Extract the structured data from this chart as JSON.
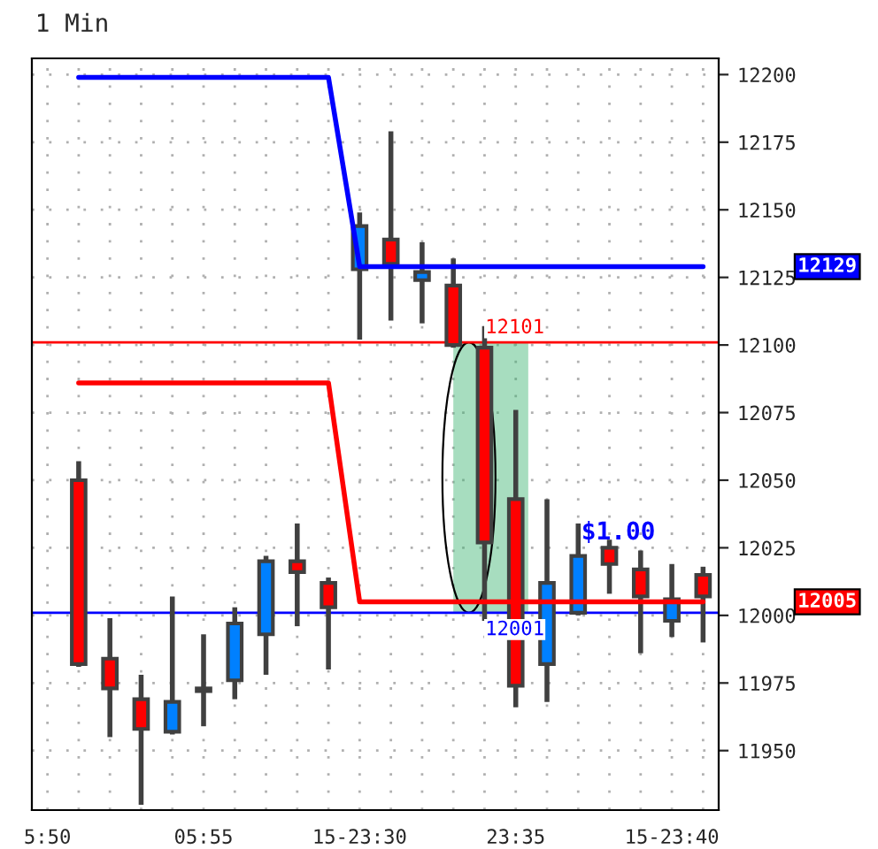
{
  "chart_data": {
    "type": "candlestick",
    "title": "1 Min",
    "categories": [
      "5:50",
      null,
      null,
      null,
      null,
      "05:55",
      null,
      null,
      null,
      null,
      "15-23:30",
      null,
      null,
      null,
      null,
      "23:35",
      null,
      null,
      null,
      null,
      "15-23:40",
      null
    ],
    "ohlc": [
      null,
      [
        12050,
        12057,
        11981,
        11982
      ],
      [
        11984,
        11999,
        11955,
        11973
      ],
      [
        11969,
        11978,
        11930,
        11958
      ],
      [
        11957,
        12007,
        11956,
        11968
      ],
      [
        11972,
        11993,
        11959,
        11973
      ],
      [
        11976,
        12003,
        11969,
        11997
      ],
      [
        11993,
        12022,
        11978,
        12020
      ],
      [
        12020,
        12034,
        11996,
        12016
      ],
      [
        12012,
        12014,
        11980,
        12003
      ],
      [
        12128,
        12149,
        12102,
        12144
      ],
      [
        12139,
        12179,
        12109,
        12130
      ],
      [
        12124,
        12138,
        12108,
        12127
      ],
      [
        12122,
        12132,
        12099,
        12100
      ],
      [
        12099,
        12107,
        11998,
        12027
      ],
      [
        12043,
        12076,
        11966,
        11974
      ],
      [
        11982,
        12043,
        11968,
        12012
      ],
      [
        12001,
        12034,
        12000,
        12022
      ],
      [
        12025,
        12028,
        12008,
        12019
      ],
      [
        12017,
        12024,
        11986,
        12007
      ],
      [
        11998,
        12019,
        11992,
        12006
      ],
      [
        12015,
        12018,
        11990,
        12007
      ]
    ],
    "colors": [
      null,
      "#ff0000",
      "#ff0000",
      "#ff0000",
      "#0080ff",
      "#0080ff",
      "#0080ff",
      "#0080ff",
      "#ff0000",
      "#ff0000",
      "#0080ff",
      "#ff0000",
      "#0080ff",
      "#ff0000",
      "#ff0000",
      "#ff0000",
      "#0080ff",
      "#0080ff",
      "#ff0000",
      "#ff0000",
      "#0080ff",
      "#ff0000"
    ],
    "series": [
      {
        "type": "line",
        "color": "#0000ff",
        "values": [
          null,
          12199,
          12199,
          12199,
          12199,
          12199,
          12199,
          12199,
          12199,
          12199,
          12129,
          12129,
          12129,
          12129,
          12129,
          12129,
          12129,
          12129,
          12129,
          12129,
          12129,
          12129
        ]
      },
      {
        "type": "line",
        "color": "#ff0000",
        "values": [
          null,
          12086,
          12086,
          12086,
          12086,
          12086,
          12086,
          12086,
          12086,
          12086,
          12005,
          12005,
          12005,
          12005,
          12005,
          12005,
          12005,
          12005,
          12005,
          12005,
          12005,
          12005
        ]
      }
    ],
    "ref_lines": [
      {
        "axis": "y",
        "value": 12101,
        "label": "12101",
        "color": "#ff0000"
      },
      {
        "axis": "y",
        "value": 12001,
        "label": "12001",
        "color": "#0000ff"
      }
    ],
    "annotations": [
      "12129",
      "12005",
      "$1.00"
    ],
    "ylim": [
      11928,
      12206
    ],
    "yticks": [
      11950,
      11975,
      12000,
      12025,
      12050,
      12075,
      12100,
      12125,
      12150,
      12175,
      12200
    ],
    "grid": true,
    "line_style": "solid"
  }
}
